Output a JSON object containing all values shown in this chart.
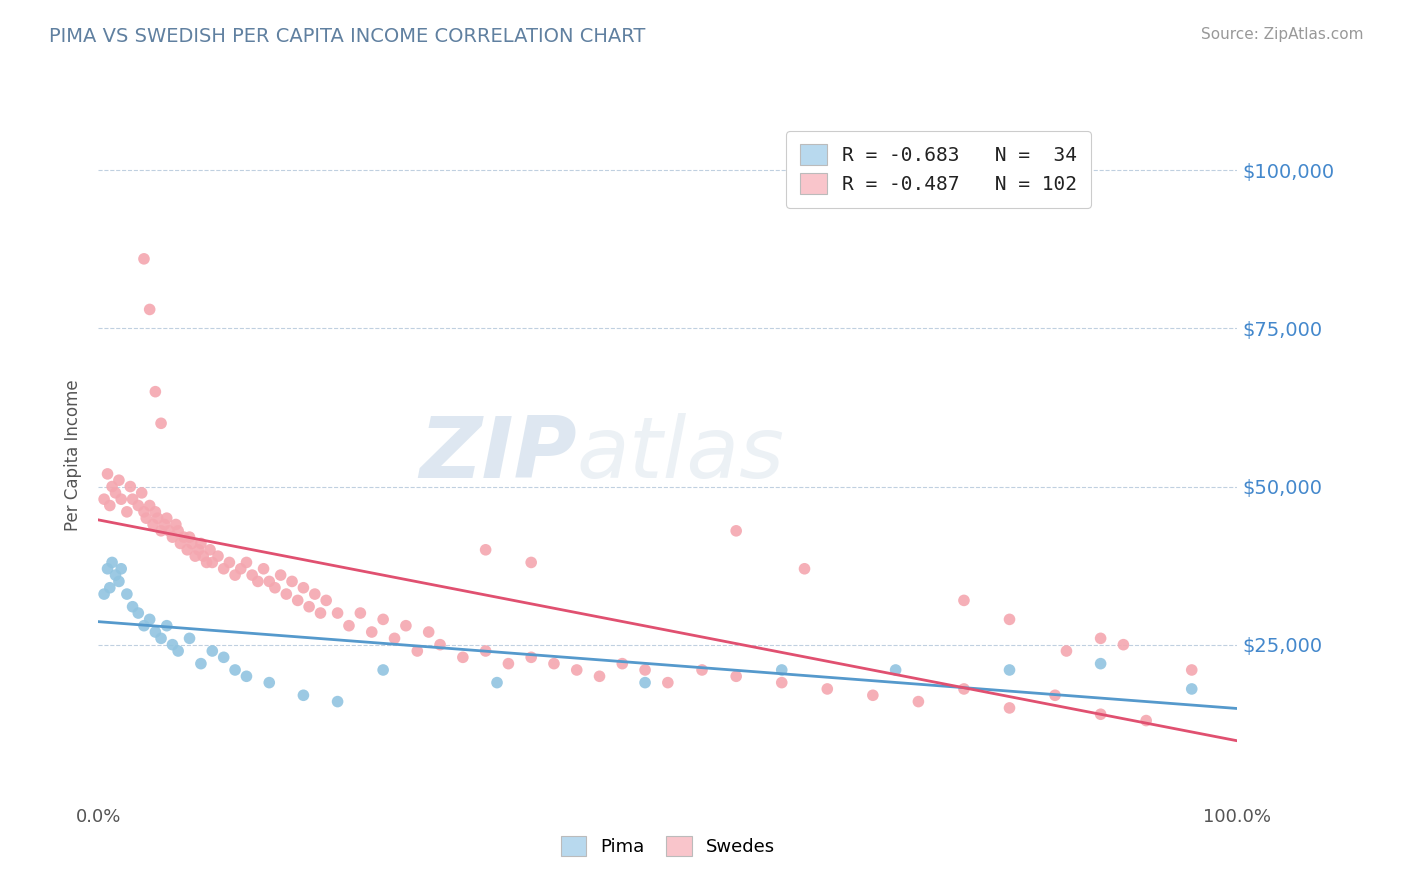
{
  "title": "PIMA VS SWEDISH PER CAPITA INCOME CORRELATION CHART",
  "source": "Source: ZipAtlas.com",
  "ylabel": "Per Capita Income",
  "xlim": [
    0.0,
    1.0
  ],
  "ylim": [
    0,
    110000
  ],
  "yticks": [
    25000,
    50000,
    75000,
    100000
  ],
  "ytick_labels": [
    "$25,000",
    "$50,000",
    "$75,000",
    "$100,000"
  ],
  "xtick_labels": [
    "0.0%",
    "100.0%"
  ],
  "legend_line1": "R = -0.683   N =  34",
  "legend_line2": "R = -0.487   N = 102",
  "pima_color": "#91c4e0",
  "swedes_color": "#f4a7b0",
  "pima_fill": "#b8d9ee",
  "swedes_fill": "#f9c5cb",
  "trend_pima_color": "#5599cc",
  "trend_swedes_color": "#e05070",
  "background_color": "#ffffff",
  "grid_color": "#c0d0e0",
  "title_color": "#6080a0",
  "source_color": "#999999",
  "watermark_zip": "ZIP",
  "watermark_atlas": "atlas",
  "pima_x": [
    0.005,
    0.008,
    0.01,
    0.012,
    0.015,
    0.018,
    0.02,
    0.025,
    0.03,
    0.035,
    0.04,
    0.045,
    0.05,
    0.055,
    0.06,
    0.065,
    0.07,
    0.08,
    0.09,
    0.1,
    0.11,
    0.12,
    0.13,
    0.15,
    0.18,
    0.21,
    0.25,
    0.35,
    0.48,
    0.6,
    0.7,
    0.8,
    0.88,
    0.96
  ],
  "pima_y": [
    33000,
    37000,
    34000,
    38000,
    36000,
    35000,
    37000,
    33000,
    31000,
    30000,
    28000,
    29000,
    27000,
    26000,
    28000,
    25000,
    24000,
    26000,
    22000,
    24000,
    23000,
    21000,
    20000,
    19000,
    17000,
    16000,
    21000,
    19000,
    19000,
    21000,
    21000,
    21000,
    22000,
    18000
  ],
  "swedes_x": [
    0.005,
    0.008,
    0.01,
    0.012,
    0.015,
    0.018,
    0.02,
    0.025,
    0.028,
    0.03,
    0.035,
    0.038,
    0.04,
    0.042,
    0.045,
    0.048,
    0.05,
    0.052,
    0.055,
    0.058,
    0.06,
    0.062,
    0.065,
    0.068,
    0.07,
    0.072,
    0.075,
    0.078,
    0.08,
    0.082,
    0.085,
    0.088,
    0.09,
    0.092,
    0.095,
    0.098,
    0.1,
    0.105,
    0.11,
    0.115,
    0.12,
    0.125,
    0.13,
    0.135,
    0.14,
    0.145,
    0.15,
    0.155,
    0.16,
    0.165,
    0.17,
    0.175,
    0.18,
    0.185,
    0.19,
    0.195,
    0.2,
    0.21,
    0.22,
    0.23,
    0.24,
    0.25,
    0.26,
    0.27,
    0.28,
    0.29,
    0.3,
    0.32,
    0.34,
    0.36,
    0.38,
    0.4,
    0.42,
    0.44,
    0.46,
    0.48,
    0.5,
    0.53,
    0.56,
    0.6,
    0.64,
    0.68,
    0.72,
    0.76,
    0.8,
    0.84,
    0.88,
    0.92,
    0.34,
    0.38,
    0.56,
    0.62,
    0.76,
    0.8,
    0.85,
    0.88,
    0.9,
    0.04,
    0.045,
    0.05,
    0.055,
    0.96
  ],
  "swedes_y": [
    48000,
    52000,
    47000,
    50000,
    49000,
    51000,
    48000,
    46000,
    50000,
    48000,
    47000,
    49000,
    46000,
    45000,
    47000,
    44000,
    46000,
    45000,
    43000,
    44000,
    45000,
    43000,
    42000,
    44000,
    43000,
    41000,
    42000,
    40000,
    42000,
    41000,
    39000,
    40000,
    41000,
    39000,
    38000,
    40000,
    38000,
    39000,
    37000,
    38000,
    36000,
    37000,
    38000,
    36000,
    35000,
    37000,
    35000,
    34000,
    36000,
    33000,
    35000,
    32000,
    34000,
    31000,
    33000,
    30000,
    32000,
    30000,
    28000,
    30000,
    27000,
    29000,
    26000,
    28000,
    24000,
    27000,
    25000,
    23000,
    24000,
    22000,
    23000,
    22000,
    21000,
    20000,
    22000,
    21000,
    19000,
    21000,
    20000,
    19000,
    18000,
    17000,
    16000,
    18000,
    15000,
    17000,
    14000,
    13000,
    40000,
    38000,
    43000,
    37000,
    32000,
    29000,
    24000,
    26000,
    25000,
    86000,
    78000,
    65000,
    60000,
    21000
  ]
}
